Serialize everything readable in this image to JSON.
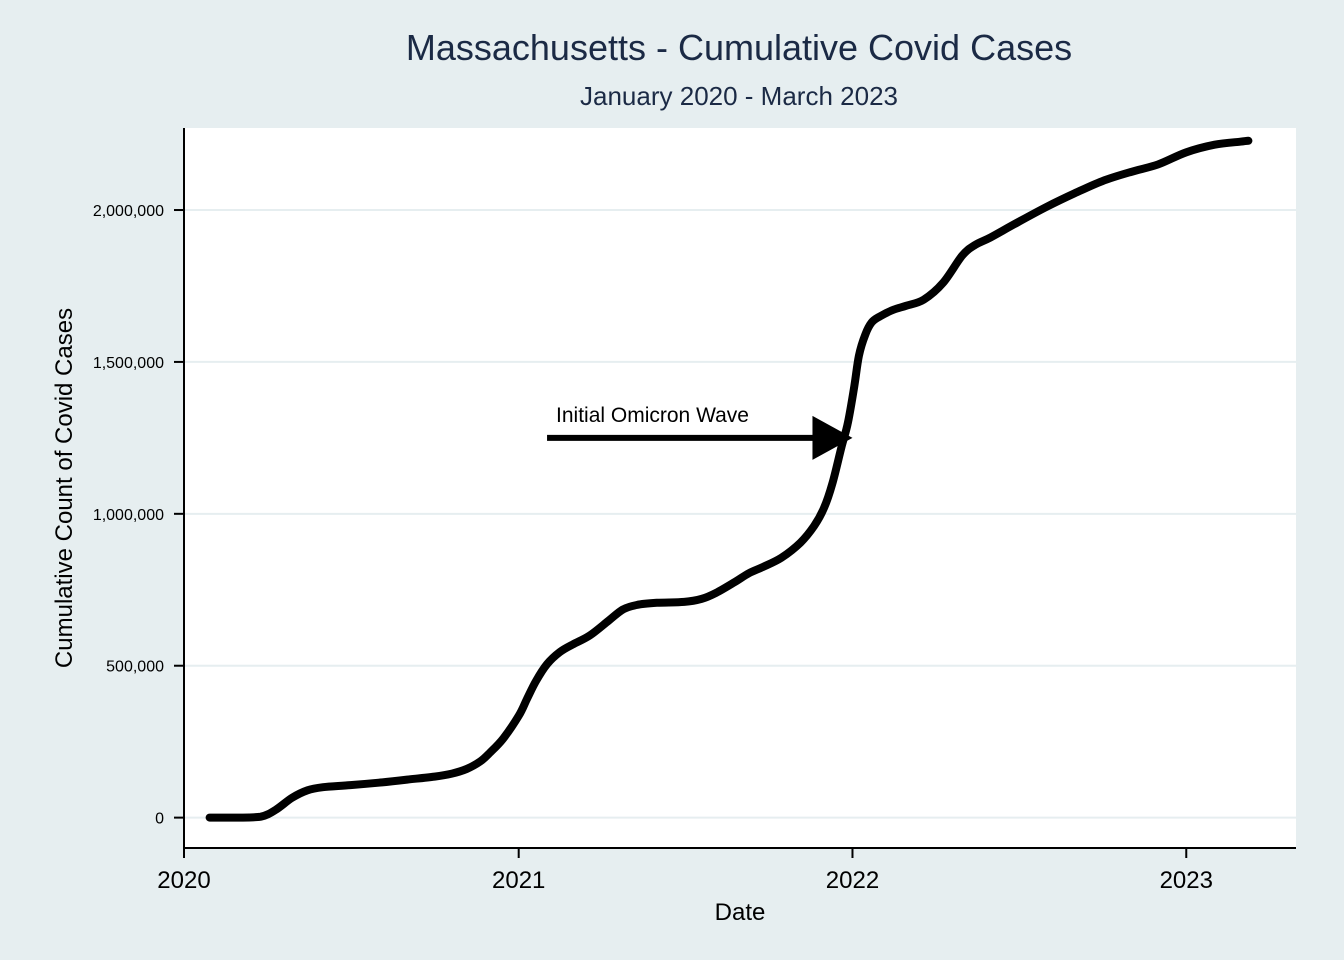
{
  "chart_data": {
    "type": "line",
    "title": "Massachusetts - Cumulative Covid Cases",
    "subtitle": "January 2020 - March 2023",
    "xlabel": "Date",
    "ylabel": "Cumulative Count of Covid Cases",
    "xlim": [
      "2020-01-01",
      "2023-05-01"
    ],
    "ylim": [
      -100000,
      2270000
    ],
    "x_ticks": [
      {
        "date": "2020-01-01",
        "label": "2020"
      },
      {
        "date": "2021-01-01",
        "label": "2021"
      },
      {
        "date": "2022-01-01",
        "label": "2022"
      },
      {
        "date": "2023-01-01",
        "label": "2023"
      }
    ],
    "y_ticks": [
      {
        "value": 0,
        "label": "0"
      },
      {
        "value": 500000,
        "label": "500,000"
      },
      {
        "value": 1000000,
        "label": "1,000,000"
      },
      {
        "value": 1500000,
        "label": "1,500,000"
      },
      {
        "value": 2000000,
        "label": "2,000,000"
      }
    ],
    "grid": true,
    "legend": "none",
    "line_color": "#000000",
    "plot_background": "#ffffff",
    "page_background": "#e6eef0",
    "gridline_color": "#e6eef0",
    "series": [
      {
        "x": [
          "2020-01-29",
          "2020-03-01",
          "2020-03-25",
          "2020-04-10",
          "2020-04-28",
          "2020-05-15",
          "2020-06-01",
          "2020-07-01",
          "2020-08-01",
          "2020-09-01",
          "2020-10-01",
          "2020-10-20",
          "2020-11-05",
          "2020-11-20",
          "2020-12-01",
          "2020-12-15",
          "2021-01-01",
          "2021-01-10",
          "2021-01-20",
          "2021-02-01",
          "2021-02-15",
          "2021-03-01",
          "2021-03-20",
          "2021-04-10",
          "2021-04-25",
          "2021-05-10",
          "2021-06-01",
          "2021-07-01",
          "2021-07-20",
          "2021-08-05",
          "2021-08-25",
          "2021-09-10",
          "2021-09-25",
          "2021-10-15",
          "2021-11-05",
          "2021-11-20",
          "2021-12-01",
          "2021-12-10",
          "2021-12-20",
          "2021-12-27",
          "2022-01-03",
          "2022-01-08",
          "2022-01-15",
          "2022-01-22",
          "2022-01-31",
          "2022-02-15",
          "2022-03-01",
          "2022-03-20",
          "2022-04-10",
          "2022-05-01",
          "2022-05-15",
          "2022-06-01",
          "2022-07-01",
          "2022-08-01",
          "2022-09-01",
          "2022-10-01",
          "2022-11-01",
          "2022-12-01",
          "2023-01-01",
          "2023-02-01",
          "2023-03-01",
          "2023-03-10"
        ],
        "y": [
          1,
          10,
          3000,
          25000,
          65000,
          90000,
          100000,
          107000,
          115000,
          125000,
          135000,
          145000,
          160000,
          185000,
          215000,
          260000,
          335000,
          390000,
          450000,
          505000,
          545000,
          570000,
          600000,
          650000,
          685000,
          700000,
          707000,
          710000,
          720000,
          740000,
          775000,
          805000,
          825000,
          855000,
          905000,
          960000,
          1020000,
          1100000,
          1220000,
          1300000,
          1420000,
          1520000,
          1590000,
          1630000,
          1650000,
          1672000,
          1685000,
          1705000,
          1760000,
          1850000,
          1885000,
          1910000,
          1960000,
          2010000,
          2055000,
          2095000,
          2125000,
          2150000,
          2190000,
          2215000,
          2225000,
          2228000
        ]
      }
    ],
    "annotations": [
      {
        "text": "Initial Omicron Wave",
        "arrow_from": [
          "2021-02-01",
          1250000
        ],
        "arrow_to": [
          "2022-01-01",
          1250000
        ]
      }
    ]
  }
}
